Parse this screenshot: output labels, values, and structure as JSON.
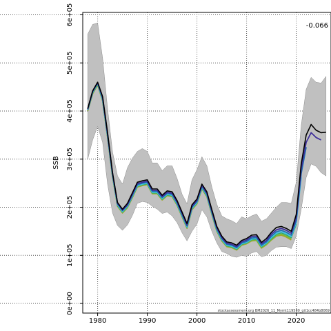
{
  "chart_data": {
    "type": "line",
    "title": "",
    "xlabel": "",
    "ylabel": "SSB",
    "xlim": [
      1977,
      2027
    ],
    "ylim": [
      -20000,
      605000
    ],
    "x_ticks": [
      1980,
      1990,
      2000,
      2010,
      2020
    ],
    "x_tick_labels": [
      "1980",
      "1990",
      "2000",
      "2010",
      "2020"
    ],
    "y_ticks": [
      0,
      100000,
      200000,
      300000,
      400000,
      500000,
      600000
    ],
    "y_tick_labels": [
      "0e+00",
      "1e+05",
      "2e+05",
      "3e+05",
      "4e+05",
      "5e+05",
      "6e+05"
    ],
    "grid": true,
    "annotation": "-0.066",
    "source_text": "stockassessment.org BM2026_11_Mymt119580_git1cc484b8069",
    "colors": {
      "band": "#c0c0c0",
      "band_edge": "#8c8c8c",
      "grid": "#555555",
      "series": [
        "#000000",
        "#3f2f9a",
        "#1f6fb0",
        "#46c3e3",
        "#2fa86a",
        "#7cb83a",
        "#a9a329"
      ]
    },
    "band": {
      "x": [
        1978,
        1979,
        1980,
        1981,
        1982,
        1983,
        1984,
        1985,
        1986,
        1987,
        1988,
        1989,
        1990,
        1991,
        1992,
        1993,
        1994,
        1995,
        1996,
        1997,
        1998,
        1999,
        2000,
        2001,
        2002,
        2003,
        2004,
        2005,
        2006,
        2007,
        2008,
        2009,
        2010,
        2011,
        2012,
        2013,
        2014,
        2015,
        2016,
        2017,
        2018,
        2019,
        2020,
        2021,
        2022,
        2023,
        2024,
        2025,
        2026
      ],
      "upper": [
        560000,
        580000,
        583000,
        510000,
        405000,
        315000,
        265000,
        248000,
        282000,
        302000,
        316000,
        322000,
        316000,
        292000,
        292000,
        276000,
        286000,
        286000,
        260000,
        227000,
        207000,
        257000,
        278000,
        305000,
        286000,
        242000,
        206000,
        182000,
        176000,
        172000,
        166000,
        180000,
        176000,
        182000,
        186000,
        171000,
        176000,
        188000,
        200000,
        210000,
        210000,
        208000,
        252000,
        370000,
        445000,
        470000,
        460000,
        458000,
        472000
      ],
      "lower": [
        300000,
        340000,
        368000,
        335000,
        248000,
        188000,
        162000,
        152000,
        163000,
        183000,
        208000,
        212000,
        210000,
        202000,
        196000,
        187000,
        190000,
        182000,
        168000,
        147000,
        130000,
        150000,
        165000,
        195000,
        180000,
        150000,
        126000,
        108000,
        104000,
        98000,
        96000,
        100000,
        98000,
        105000,
        108000,
        97000,
        100000,
        110000,
        117000,
        118000,
        118000,
        114000,
        140000,
        196000,
        262000,
        290000,
        285000,
        272000,
        265000
      ]
    },
    "series": [
      {
        "values": [
          405000,
          442000,
          460000,
          430000,
          355000,
          272000,
          210000,
          196000,
          208000,
          230000,
          252000,
          255000,
          257000,
          238000,
          238000,
          225000,
          234000,
          232000,
          214000,
          190000,
          166000,
          205000,
          217000,
          248000,
          232000,
          195000,
          160000,
          140000,
          128000,
          126000,
          121000,
          131000,
          135000,
          142000,
          143000,
          127000,
          135000,
          148000,
          158000,
          160000,
          156000,
          150000,
          185000,
          290000,
          350000,
          372000,
          360000,
          355000,
          356000
        ]
      },
      {
        "values": [
          404000,
          441000,
          459000,
          428000,
          352000,
          270000,
          208000,
          194000,
          205000,
          227000,
          249000,
          252000,
          254000,
          235000,
          235000,
          222000,
          231000,
          229000,
          211000,
          187000,
          163000,
          202000,
          214000,
          245000,
          229000,
          192000,
          157000,
          137000,
          125000,
          123000,
          118000,
          128000,
          132000,
          139000,
          140000,
          124000,
          131000,
          144000,
          153000,
          156000,
          152000,
          146000,
          178000,
          280000,
          335000,
          355000,
          345000,
          340000,
          null
        ]
      },
      {
        "values": [
          403000,
          440000,
          458000,
          426000,
          350000,
          268000,
          207000,
          193000,
          204000,
          225000,
          247000,
          250000,
          252000,
          233000,
          233000,
          220000,
          229000,
          227000,
          209000,
          185000,
          161000,
          200000,
          212000,
          243000,
          227000,
          190000,
          155000,
          135000,
          123000,
          121000,
          116000,
          126000,
          129000,
          136000,
          137000,
          121000,
          128000,
          140000,
          149000,
          152000,
          148000,
          142000,
          172000,
          270000,
          325000,
          null,
          null,
          null,
          null
        ]
      },
      {
        "values": [
          402000,
          439000,
          457000,
          424000,
          348000,
          266000,
          205000,
          191000,
          202000,
          223000,
          245000,
          248000,
          250000,
          231000,
          231000,
          218000,
          227000,
          225000,
          207000,
          183000,
          159000,
          198000,
          210000,
          241000,
          225000,
          188000,
          153000,
          133000,
          121000,
          119000,
          114000,
          124000,
          127000,
          134000,
          135000,
          119000,
          126000,
          137000,
          146000,
          149000,
          145000,
          139000,
          168000,
          262000,
          null,
          null,
          null,
          null,
          null
        ]
      },
      {
        "values": [
          402000,
          438000,
          456000,
          423000,
          347000,
          265000,
          204000,
          190000,
          201000,
          222000,
          244000,
          247000,
          249000,
          230000,
          230000,
          217000,
          226000,
          224000,
          206000,
          182000,
          158000,
          197000,
          209000,
          240000,
          224000,
          187000,
          152000,
          132000,
          120000,
          118000,
          113000,
          123000,
          126000,
          133000,
          134000,
          118000,
          125000,
          135000,
          144000,
          147000,
          143000,
          137000,
          165000,
          null,
          null,
          null,
          null,
          null,
          null
        ]
      },
      {
        "values": [
          401000,
          437000,
          455000,
          422000,
          346000,
          264000,
          203000,
          189000,
          200000,
          221000,
          243000,
          246000,
          248000,
          229000,
          229000,
          216000,
          225000,
          223000,
          205000,
          181000,
          157000,
          196000,
          208000,
          239000,
          223000,
          186000,
          151000,
          131000,
          119000,
          117000,
          112000,
          122000,
          125000,
          131000,
          132000,
          116000,
          123000,
          133000,
          141000,
          144000,
          140000,
          134000,
          null,
          null,
          null,
          null,
          null,
          null,
          null
        ]
      },
      {
        "values": [
          400000,
          436000,
          454000,
          421000,
          345000,
          263000,
          202000,
          188000,
          199000,
          220000,
          242000,
          245000,
          247000,
          228000,
          228000,
          215000,
          224000,
          222000,
          204000,
          180000,
          156000,
          195000,
          207000,
          238000,
          222000,
          185000,
          150000,
          130000,
          118000,
          116000,
          111000,
          121000,
          124000,
          130000,
          131000,
          115000,
          122000,
          132000,
          140000,
          142000,
          138000,
          132000,
          null,
          null,
          null,
          null,
          null,
          null,
          null
        ]
      }
    ]
  }
}
